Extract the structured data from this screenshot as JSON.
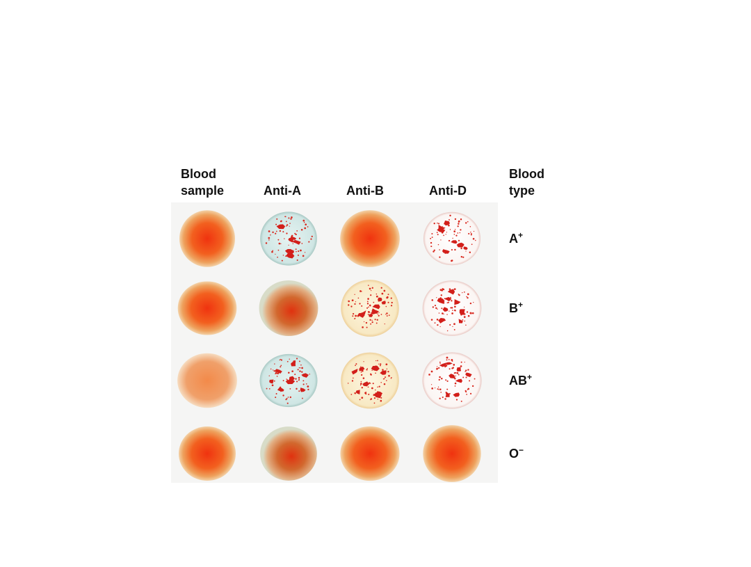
{
  "headers": {
    "sample": [
      "Blood",
      "sample"
    ],
    "anti_a": "Anti-A",
    "anti_b": "Anti-B",
    "anti_d": "Anti-D",
    "type": [
      "Blood",
      "type"
    ]
  },
  "rows": [
    {
      "type": "A",
      "rh": "+"
    },
    {
      "type": "B",
      "rh": "+"
    },
    {
      "type": "AB",
      "rh": "+"
    },
    {
      "type": "O",
      "rh": "−"
    }
  ]
}
